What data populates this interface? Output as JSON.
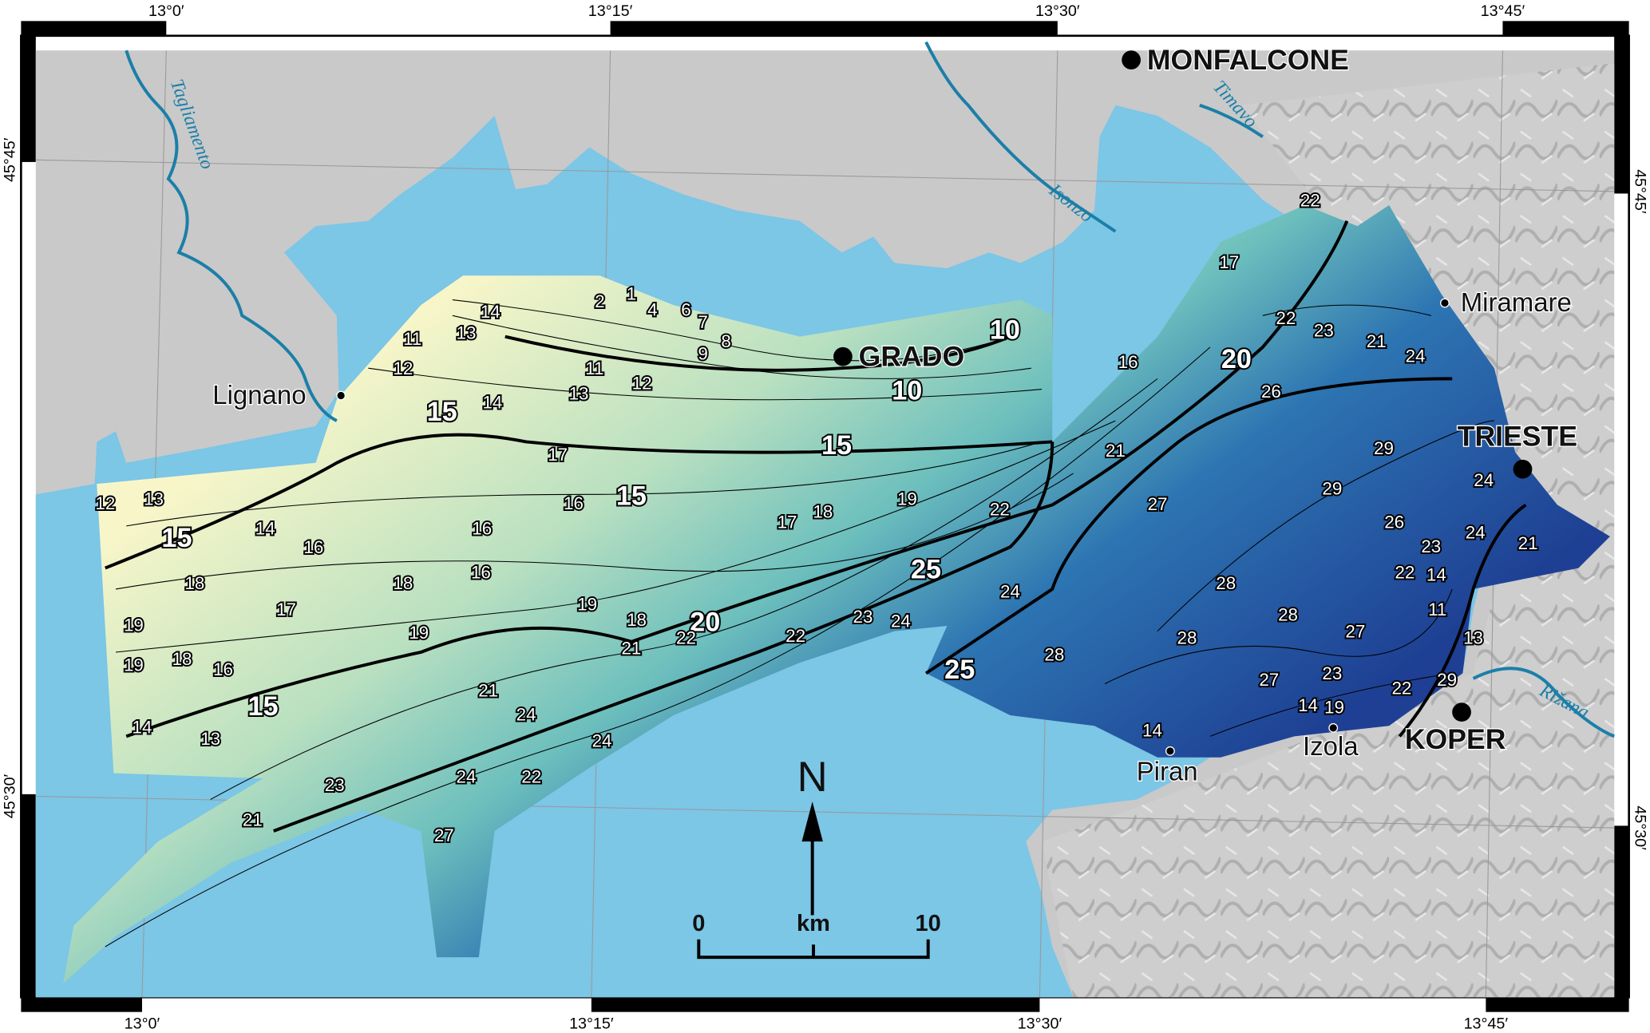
{
  "map": {
    "colors": {
      "land": "#c9c9c9",
      "sea": "#7cc6e6",
      "river": "#1b7fa8",
      "shallow": "#f8f6c9",
      "mid": "#8fd0bf",
      "deep": "#1e4697"
    },
    "graticule": {
      "top": [
        "13°0′",
        "13°15′",
        "13°30′",
        "13°45′"
      ],
      "bottom": [
        "13°0′",
        "13°15′",
        "13°30′",
        "13°45′"
      ],
      "left": [
        "45°45′",
        "45°30′"
      ],
      "right": [
        "45°45′",
        "45°30′"
      ]
    },
    "cities": {
      "major": [
        "MONFALCONE",
        "GRADO",
        "TRIESTE",
        "KOPER"
      ],
      "minor": [
        "Lignano",
        "Miramare",
        "Piran",
        "Izola"
      ]
    },
    "rivers": [
      "Tagliamento",
      "Isonzo",
      "Timavo",
      "Rižana"
    ],
    "contour_labels_major": [
      "15",
      "15",
      "15",
      "15",
      "15",
      "10",
      "10",
      "20",
      "20",
      "25",
      "25"
    ],
    "contour_labels": [
      "2",
      "1",
      "4",
      "6",
      "7",
      "8",
      "9",
      "11",
      "12",
      "13",
      "14",
      "14",
      "13",
      "12",
      "11",
      "12",
      "13",
      "14",
      "17",
      "16",
      "16",
      "16",
      "16",
      "18",
      "17",
      "18",
      "19",
      "19",
      "18",
      "16",
      "14",
      "13",
      "17",
      "19",
      "19",
      "18",
      "21",
      "22",
      "21",
      "24",
      "23",
      "22",
      "24",
      "24",
      "27",
      "22",
      "23",
      "24",
      "24",
      "21",
      "17",
      "18",
      "19",
      "22",
      "28",
      "16",
      "22",
      "22",
      "23",
      "21",
      "24",
      "26",
      "21",
      "27",
      "29",
      "29",
      "24",
      "26",
      "23",
      "24",
      "21",
      "22",
      "14",
      "11",
      "13",
      "28",
      "28",
      "28",
      "27",
      "27",
      "23",
      "14",
      "19",
      "22",
      "29",
      "14"
    ],
    "north_label": "N",
    "scale": {
      "unit": "km",
      "min": "0",
      "max": "10"
    }
  }
}
